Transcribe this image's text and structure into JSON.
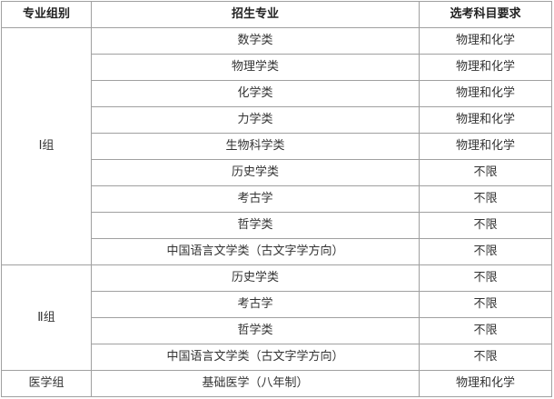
{
  "headers": [
    "专业组别",
    "招生专业",
    "选考科目要求"
  ],
  "groups": [
    {
      "name": "Ⅰ组",
      "rows": [
        {
          "major": "数学类",
          "requirement": "物理和化学"
        },
        {
          "major": "物理学类",
          "requirement": "物理和化学"
        },
        {
          "major": "化学类",
          "requirement": "物理和化学"
        },
        {
          "major": "力学类",
          "requirement": "物理和化学"
        },
        {
          "major": "生物科学类",
          "requirement": "物理和化学"
        },
        {
          "major": "历史学类",
          "requirement": "不限"
        },
        {
          "major": "考古学",
          "requirement": "不限"
        },
        {
          "major": "哲学类",
          "requirement": "不限"
        },
        {
          "major": "中国语言文学类（古文字学方向）",
          "requirement": "不限"
        }
      ]
    },
    {
      "name": "Ⅱ组",
      "rows": [
        {
          "major": "历史学类",
          "requirement": "不限"
        },
        {
          "major": "考古学",
          "requirement": "不限"
        },
        {
          "major": "哲学类",
          "requirement": "不限"
        },
        {
          "major": "中国语言文学类（古文字学方向）",
          "requirement": "不限"
        }
      ]
    },
    {
      "name": "医学组",
      "rows": [
        {
          "major": "基础医学（八年制）",
          "requirement": "物理和化学"
        }
      ]
    }
  ]
}
